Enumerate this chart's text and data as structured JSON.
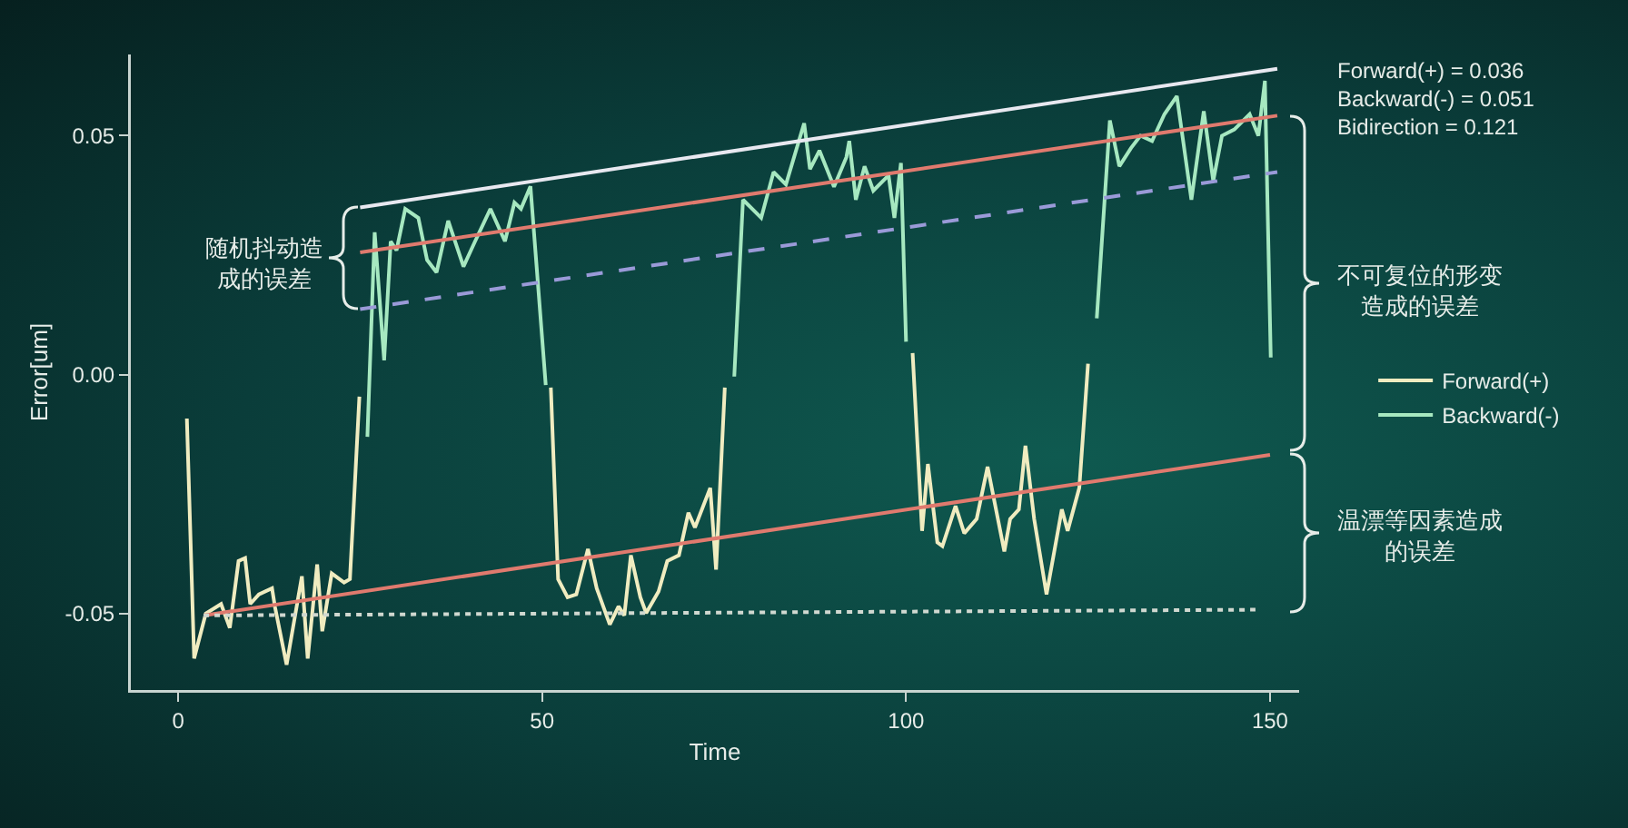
{
  "chart_data": {
    "type": "line",
    "xlabel": "Time",
    "ylabel": "Error[um]",
    "xlim": [
      -6.5,
      154
    ],
    "ylim": [
      -0.066,
      0.067
    ],
    "xticks": [
      0,
      50,
      100,
      150
    ],
    "yticks": [
      -0.05,
      {
        "value": 0,
        "label": "0.00"
      },
      0.05
    ],
    "grid": false,
    "legend": "right",
    "marker": "none",
    "line_style": "solid",
    "annotations": [
      "Forward(+) = 0.036\nBackward(-) = 0.051\nBidirection = 0.121",
      "随机抖动造成的误差",
      "不可复位的形变造成的误差",
      "温漂等因素造成的误差"
    ],
    "series": [
      {
        "name": "Forward(+)",
        "color": "#f0ecc0",
        "x": [
          1.2,
          2.2,
          3.8,
          5.9,
          7.1,
          8.3,
          9.2,
          9.9,
          11.1,
          12.9,
          13.3,
          14.9,
          17,
          17.8,
          19.1,
          19.8,
          21.1,
          22.8,
          23.6,
          24.9,
          25.5,
          51.2,
          52.2,
          53.5,
          54.7,
          56.3,
          57.5,
          59.3,
          60.5,
          61.3,
          62.2,
          63.5,
          64.3,
          66,
          67.2,
          68.8,
          70.1,
          71,
          73.1,
          73.9,
          75.1,
          75.5,
          100.9,
          102.2,
          103,
          104.3,
          105,
          106.8,
          108,
          109.7,
          111.2,
          113.5,
          114.3,
          115.5,
          116.4,
          117.6,
          119.3,
          121.4,
          122.2,
          123.8,
          125
        ],
        "values": [
          -0.0092,
          -0.0594,
          -0.05,
          -0.048,
          -0.053,
          -0.039,
          -0.0384,
          -0.048,
          -0.046,
          -0.0447,
          -0.0486,
          -0.0607,
          -0.0422,
          -0.0594,
          -0.0397,
          -0.0537,
          -0.0416,
          -0.0435,
          -0.0428,
          -0.0046,
          null,
          -0.0027,
          -0.0428,
          -0.0466,
          -0.046,
          -0.0365,
          -0.0447,
          -0.0523,
          -0.0485,
          -0.0504,
          -0.0378,
          -0.0466,
          -0.0499,
          -0.0454,
          -0.039,
          -0.0378,
          -0.0289,
          -0.032,
          -0.0237,
          -0.0408,
          -0.0027,
          null,
          0.0045,
          -0.0327,
          -0.0187,
          -0.0351,
          -0.0359,
          -0.0275,
          -0.0332,
          -0.0302,
          -0.0193,
          -0.037,
          -0.0302,
          -0.0282,
          -0.0149,
          -0.0302,
          -0.046,
          -0.0282,
          -0.0327,
          -0.0237,
          0.0023
        ]
      },
      {
        "name": "Backward(-)",
        "color": "#a6e8c0",
        "x": [
          26,
          27,
          28.3,
          29.2,
          30,
          31.2,
          33,
          34.2,
          35.5,
          37.1,
          39.2,
          40.8,
          42.9,
          44.9,
          46.2,
          47.1,
          48.4,
          50.5,
          51,
          76.4,
          77.6,
          80.1,
          81.8,
          83.5,
          86,
          86.8,
          88.1,
          90.1,
          91.8,
          92.2,
          93.1,
          94.3,
          95.5,
          97.6,
          98.4,
          99.3,
          100,
          100.5,
          126.2,
          128,
          129.3,
          130.9,
          132.2,
          133.8,
          135.5,
          137.2,
          139.2,
          140.9,
          142.2,
          143.4,
          145.1,
          147.2,
          148.4,
          149.3,
          150.1
        ],
        "values": [
          -0.013,
          0.0298,
          0.003,
          0.0279,
          0.026,
          0.0347,
          0.0328,
          0.024,
          0.0214,
          0.0322,
          0.0226,
          0.0279,
          0.0347,
          0.0279,
          0.036,
          0.0347,
          0.0394,
          -0.0022,
          null,
          -0.0004,
          0.0366,
          0.0328,
          0.0424,
          0.0398,
          0.0526,
          0.043,
          0.0469,
          0.0393,
          0.0455,
          0.0489,
          0.0366,
          0.0436,
          0.0385,
          0.0417,
          0.0328,
          0.0443,
          0.0069,
          null,
          0.0118,
          0.0532,
          0.0436,
          0.0474,
          0.05,
          0.0489,
          0.0545,
          0.0583,
          0.0366,
          0.0551,
          0.0405,
          0.05,
          0.0513,
          0.0545,
          0.05,
          0.0615,
          0.0036
        ]
      },
      {
        "type": "line",
        "color": "#e8e8f0",
        "x": [
          25,
          151
        ],
        "values": [
          0.035,
          0.064
        ]
      },
      {
        "type": "line",
        "color": "#e07a6e",
        "x": [
          25,
          151
        ],
        "values": [
          0.0256,
          0.0542
        ]
      },
      {
        "type": "line",
        "color": "#9a9ad8",
        "line_style": "dashed",
        "x": [
          25,
          151
        ],
        "values": [
          0.0137,
          0.0424
        ]
      },
      {
        "type": "line",
        "color": "#e07a6e",
        "x": [
          3.5,
          150
        ],
        "values": [
          -0.0504,
          -0.0168
        ]
      },
      {
        "type": "line",
        "color": "#d0d8d0",
        "line_style": "dotted",
        "x": [
          3.5,
          148
        ],
        "values": [
          -0.0504,
          -0.0492
        ]
      }
    ]
  }
}
